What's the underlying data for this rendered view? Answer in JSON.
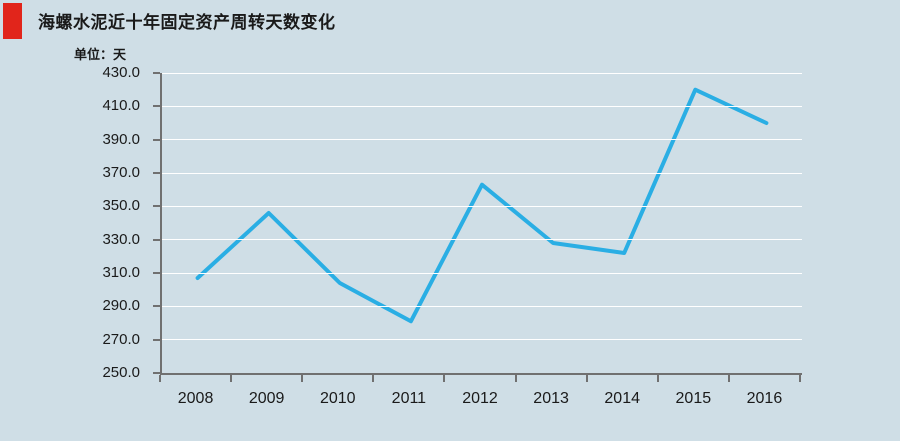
{
  "header": {
    "title": "海螺水泥近十年固定资产周转天数变化",
    "unit_label": "单位：天"
  },
  "colors": {
    "background": "#cfdee6",
    "marker": "#e1251b",
    "line": "#2aaee4",
    "axis": "#707070",
    "grid": "#ffffff",
    "text": "#1a1a1a"
  },
  "chart_data": {
    "type": "line",
    "title": "海螺水泥近十年固定资产周转天数变化",
    "unit": "单位：天",
    "categories": [
      "2008",
      "2009",
      "2010",
      "2011",
      "2012",
      "2013",
      "2014",
      "2015",
      "2016"
    ],
    "values": [
      307,
      346,
      304,
      281,
      363,
      328,
      322,
      420,
      400
    ],
    "ylim": [
      250,
      430
    ],
    "ytick_step": 20,
    "ytick_labels": [
      "430.0",
      "410.0",
      "390.0",
      "370.0",
      "350.0",
      "330.0",
      "310.0",
      "290.0",
      "270.0",
      "250.0"
    ],
    "xlabel": "",
    "ylabel": "单位：天",
    "grid": true,
    "legend": "none",
    "line_color": "#2aaee4"
  }
}
